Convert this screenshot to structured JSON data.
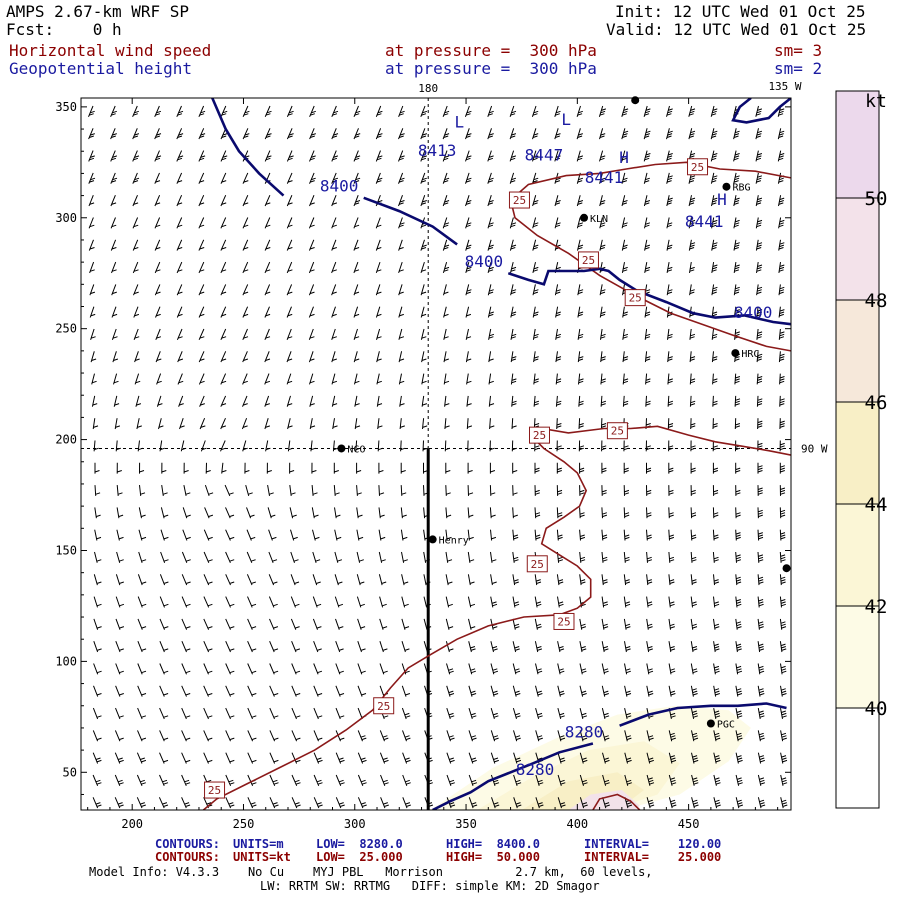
{
  "header": {
    "model": "AMPS 2.67-km WRF SP",
    "fcst": "Fcst:    0 h",
    "init": "Init: 12 UTC Wed 01 Oct 25",
    "valid": "Valid: 12 UTC Wed 01 Oct 25",
    "field1_name": "Horizontal wind speed",
    "field1_level": "at pressure =  300 hPa",
    "field1_sm": "sm= 3",
    "field2_name": "Geopotential height",
    "field2_level": "at pressure =  300 hPa",
    "field2_sm": "sm= 2"
  },
  "footer": {
    "row1": {
      "label": "CONTOURS:",
      "units": "UNITS=m",
      "low": "LOW=  8280.0",
      "high": "HIGH=  8400.0",
      "interval": "INTERVAL=    120.00"
    },
    "row2": {
      "label": "CONTOURS:",
      "units": "UNITS=kt",
      "low": "LOW=  25.000",
      "high": "HIGH=  50.000",
      "interval": "INTERVAL=    25.000"
    },
    "model_info": "Model Info: V4.3.3    No Cu    MYJ PBL   Morrison          2.7 km,  60 levels,",
    "physics": "LW: RRTM SW: RRTMG   DIFF: simple KM: 2D Smagor"
  },
  "colors": {
    "height_contour": "#0a0a6e",
    "wind_contour": "#8b1a1a",
    "shade_40": "#fdfbe6",
    "shade_42": "#fbf6d6",
    "shade_44": "#f8efc6",
    "shade_46": "#f6e8da",
    "shade_48": "#f3e2ea",
    "shade_50": "#ecd9ec"
  },
  "chart_data": {
    "type": "contour",
    "xlim": [
      177,
      496
    ],
    "ylim": [
      33,
      354
    ],
    "x_ticks": [
      200,
      250,
      300,
      350,
      400,
      450
    ],
    "y_ticks": [
      50,
      100,
      150,
      200,
      250,
      300,
      350
    ],
    "reference_lines": {
      "longitude_180": {
        "x": 333,
        "label": "180"
      },
      "longitude_135W": {
        "label": "135 W"
      },
      "longitude_90W": {
        "y": 196,
        "label": "90 W"
      }
    },
    "cross_section_line": {
      "x": 333,
      "y_start": 33,
      "y_end": 196
    },
    "colorbar": {
      "unit": "kt",
      "levels": [
        40,
        42,
        44,
        46,
        48,
        50
      ]
    },
    "stations": [
      {
        "name": "NCO",
        "x": 294,
        "y": 196
      },
      {
        "name": "KLN",
        "x": 403,
        "y": 300
      },
      {
        "name": "RBG",
        "x": 467,
        "y": 314
      },
      {
        "name": "HRC",
        "x": 471,
        "y": 239
      },
      {
        "name": "Henry",
        "x": 335,
        "y": 155
      },
      {
        "name": "PGC",
        "x": 460,
        "y": 72
      },
      {
        "name": "",
        "x": 426,
        "y": 353
      },
      {
        "name": "",
        "x": 494,
        "y": 142
      }
    ],
    "height_contours": [
      {
        "level": 8400,
        "points": [
          [
            236,
            354
          ],
          [
            242,
            340
          ],
          [
            248,
            330
          ],
          [
            257,
            320
          ],
          [
            268,
            310
          ]
        ],
        "labels": []
      },
      {
        "level": 8400,
        "points": [
          [
            304,
            309
          ],
          [
            320,
            303
          ],
          [
            335,
            296
          ],
          [
            346,
            288
          ]
        ],
        "labels": [
          {
            "text": "8400",
            "x": 293,
            "y": 314
          }
        ]
      },
      {
        "level": 8400,
        "points": [
          [
            369,
            275
          ],
          [
            378,
            272
          ],
          [
            385,
            270
          ],
          [
            387,
            276
          ],
          [
            403,
            276
          ],
          [
            410,
            277
          ],
          [
            414,
            276
          ],
          [
            419,
            272
          ],
          [
            427,
            267
          ],
          [
            440,
            262
          ],
          [
            452,
            257
          ],
          [
            462,
            255
          ],
          [
            475,
            256
          ],
          [
            488,
            253
          ],
          [
            496,
            252
          ]
        ],
        "labels": [
          {
            "text": "8400",
            "x": 358,
            "y": 280
          },
          {
            "text": "8400",
            "x": 479,
            "y": 257
          }
        ]
      },
      {
        "level": 8280,
        "points": [
          [
            335,
            33
          ],
          [
            343,
            37
          ],
          [
            352,
            41
          ],
          [
            360,
            46
          ],
          [
            370,
            50
          ],
          [
            380,
            54
          ],
          [
            392,
            59
          ],
          [
            407,
            63
          ]
        ],
        "labels": [
          {
            "text": "8280",
            "x": 381,
            "y": 51
          }
        ]
      },
      {
        "level": 8280,
        "points": [
          [
            419,
            71
          ],
          [
            432,
            76
          ],
          [
            445,
            79
          ],
          [
            460,
            80
          ],
          [
            472,
            80
          ],
          [
            485,
            81
          ],
          [
            494,
            79
          ]
        ],
        "labels": [
          {
            "text": "8280",
            "x": 403,
            "y": 68
          }
        ]
      },
      {
        "level": 8280,
        "points": [
          [
            478,
            354
          ],
          [
            473,
            350
          ],
          [
            470,
            344
          ],
          [
            476,
            343
          ],
          [
            486,
            345
          ],
          [
            491,
            350
          ],
          [
            496,
            354
          ]
        ],
        "labels": []
      }
    ],
    "height_extrema": [
      {
        "type": "L",
        "value": "8413",
        "x": 347,
        "y": 343,
        "lx": 337,
        "ly": 330
      },
      {
        "type": "L",
        "value": "8447",
        "x": 395,
        "y": 344,
        "lx": 385,
        "ly": 328
      },
      {
        "type": "H",
        "value": "8441",
        "x": 421,
        "y": 327,
        "lx": 412,
        "ly": 318
      },
      {
        "type": "H",
        "value": "8441",
        "x": 465,
        "y": 308,
        "lx": 457,
        "ly": 298
      }
    ],
    "wind_contours": [
      {
        "level": 25,
        "points": [
          [
            232,
            33
          ],
          [
            238,
            38
          ],
          [
            252,
            45
          ],
          [
            266,
            52
          ],
          [
            282,
            60
          ],
          [
            296,
            69
          ],
          [
            308,
            78
          ],
          [
            316,
            88
          ],
          [
            324,
            97
          ],
          [
            334,
            103
          ],
          [
            346,
            110
          ],
          [
            360,
            116
          ],
          [
            376,
            120
          ],
          [
            392,
            121
          ],
          [
            400,
            124
          ],
          [
            406,
            129
          ],
          [
            406,
            137
          ],
          [
            400,
            143
          ],
          [
            392,
            148
          ],
          [
            384,
            153
          ],
          [
            386,
            160
          ],
          [
            394,
            165
          ],
          [
            401,
            170
          ],
          [
            404,
            177
          ],
          [
            400,
            185
          ],
          [
            394,
            190
          ],
          [
            385,
            196
          ],
          [
            379,
            202
          ],
          [
            384,
            205
          ],
          [
            396,
            203
          ],
          [
            412,
            205
          ],
          [
            424,
            205
          ],
          [
            436,
            206
          ],
          [
            450,
            202
          ],
          [
            462,
            199
          ],
          [
            474,
            197
          ],
          [
            486,
            195
          ],
          [
            496,
            193
          ]
        ],
        "labels": [
          {
            "text": "25",
            "x": 237,
            "y": 42
          },
          {
            "text": "25",
            "x": 313,
            "y": 80
          },
          {
            "text": "25",
            "x": 394,
            "y": 118
          },
          {
            "text": "25",
            "x": 382,
            "y": 144
          },
          {
            "text": "25",
            "x": 383,
            "y": 202
          },
          {
            "text": "25",
            "x": 418,
            "y": 204
          }
        ]
      },
      {
        "level": 25,
        "points": [
          [
            496,
            318
          ],
          [
            480,
            321
          ],
          [
            464,
            322
          ],
          [
            449,
            325
          ],
          [
            435,
            324
          ],
          [
            422,
            322
          ],
          [
            410,
            320
          ],
          [
            395,
            319
          ],
          [
            378,
            315
          ],
          [
            370,
            308
          ],
          [
            372,
            300
          ],
          [
            382,
            292
          ],
          [
            396,
            284
          ],
          [
            410,
            274
          ],
          [
            426,
            265
          ],
          [
            442,
            257
          ],
          [
            456,
            252
          ],
          [
            470,
            247
          ],
          [
            485,
            242
          ],
          [
            496,
            240
          ]
        ],
        "labels": [
          {
            "text": "25",
            "x": 454,
            "y": 323
          },
          {
            "text": "25",
            "x": 374,
            "y": 308
          },
          {
            "text": "25",
            "x": 405,
            "y": 281
          },
          {
            "text": "25",
            "x": 426,
            "y": 264
          }
        ]
      },
      {
        "level": 50,
        "points": [
          [
            407,
            33
          ],
          [
            410,
            38
          ],
          [
            418,
            40
          ],
          [
            424,
            37
          ],
          [
            428,
            33
          ]
        ],
        "labels": []
      }
    ],
    "wind_shading": [
      {
        "level": 40,
        "points": [
          [
            334,
            33
          ],
          [
            362,
            52
          ],
          [
            392,
            66
          ],
          [
            418,
            76
          ],
          [
            444,
            80
          ],
          [
            468,
            78
          ],
          [
            478,
            70
          ],
          [
            468,
            55
          ],
          [
            446,
            40
          ],
          [
            420,
            33
          ]
        ]
      },
      {
        "level": 42,
        "points": [
          [
            355,
            33
          ],
          [
            380,
            48
          ],
          [
            405,
            60
          ],
          [
            430,
            64
          ],
          [
            446,
            54
          ],
          [
            436,
            40
          ],
          [
            415,
            33
          ]
        ]
      },
      {
        "level": 44,
        "points": [
          [
            375,
            33
          ],
          [
            396,
            46
          ],
          [
            418,
            50
          ],
          [
            430,
            42
          ],
          [
            418,
            33
          ]
        ]
      },
      {
        "level": 48,
        "points": [
          [
            396,
            33
          ],
          [
            406,
            40
          ],
          [
            420,
            42
          ],
          [
            428,
            35
          ],
          [
            426,
            33
          ]
        ]
      }
    ]
  }
}
